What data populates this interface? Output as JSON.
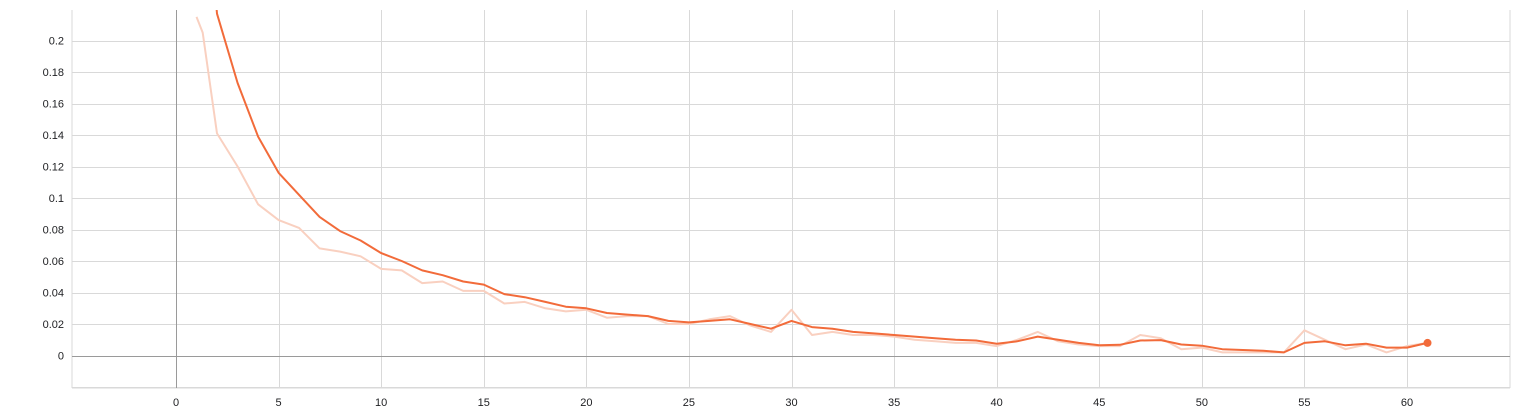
{
  "chart_data": {
    "type": "line",
    "title": "",
    "xlabel": "",
    "ylabel": "",
    "xlim": [
      -5,
      65
    ],
    "ylim": [
      -0.02,
      0.22
    ],
    "x_ticks": [
      0,
      5,
      10,
      15,
      20,
      25,
      30,
      35,
      40,
      45,
      50,
      55,
      60
    ],
    "x_tick_labels": [
      "0",
      "5",
      "10",
      "15",
      "20",
      "25",
      "30",
      "35",
      "40",
      "45",
      "50",
      "55",
      "60"
    ],
    "y_ticks": [
      0,
      0.02,
      0.04,
      0.06,
      0.08,
      0.1,
      0.12,
      0.14,
      0.16,
      0.18,
      0.2
    ],
    "y_tick_labels": [
      "0",
      "0.02",
      "0.04",
      "0.06",
      "0.08",
      "0.1",
      "0.12",
      "0.14",
      "0.16",
      "0.18",
      "0.2"
    ],
    "grid": true,
    "colors": {
      "raw": "#f9d0c0",
      "smoothed": "#f26b3a",
      "grid": "#d9d9d9",
      "zero_axis": "#9a9a9a"
    },
    "series": [
      {
        "x": [
          1,
          1.3,
          2,
          3,
          4,
          5,
          6,
          7,
          8,
          9,
          10,
          11,
          12,
          13,
          14,
          15,
          16,
          17,
          18,
          19,
          20,
          21,
          22,
          23,
          24,
          25,
          26,
          27,
          28,
          29,
          30,
          31,
          32,
          33,
          34,
          35,
          36,
          37,
          38,
          39,
          40,
          41,
          42,
          43,
          44,
          45,
          46,
          47,
          48,
          49,
          50,
          51,
          52,
          53,
          54,
          55,
          56,
          57,
          58,
          59,
          60,
          61
        ],
        "values": [
          0.215,
          0.205,
          0.141,
          0.12,
          0.096,
          0.086,
          0.081,
          0.068,
          0.066,
          0.063,
          0.055,
          0.054,
          0.046,
          0.047,
          0.041,
          0.041,
          0.033,
          0.034,
          0.03,
          0.028,
          0.029,
          0.024,
          0.025,
          0.025,
          0.02,
          0.02,
          0.023,
          0.025,
          0.019,
          0.015,
          0.029,
          0.013,
          0.015,
          0.013,
          0.013,
          0.012,
          0.01,
          0.009,
          0.008,
          0.008,
          0.006,
          0.01,
          0.015,
          0.009,
          0.007,
          0.006,
          0.006,
          0.013,
          0.011,
          0.004,
          0.005,
          0.002,
          0.002,
          0.002,
          0.002,
          0.016,
          0.01,
          0.004,
          0.007,
          0.002,
          0.006,
          0.008
        ]
      },
      {
        "x": [
          1.98,
          2,
          3,
          4,
          5,
          6,
          7,
          8,
          9,
          10,
          11,
          12,
          13,
          14,
          15,
          16,
          17,
          18,
          19,
          20,
          21,
          22,
          23,
          24,
          25,
          26,
          27,
          28,
          29,
          30,
          31,
          32,
          33,
          34,
          35,
          36,
          37,
          38,
          39,
          40,
          41,
          42,
          43,
          44,
          45,
          46,
          47,
          48,
          49,
          50,
          51,
          52,
          53,
          54,
          55,
          56,
          57,
          58,
          59,
          60,
          61
        ],
        "values": [
          0.22,
          0.217,
          0.173,
          0.139,
          0.116,
          0.102,
          0.088,
          0.079,
          0.073,
          0.065,
          0.06,
          0.054,
          0.051,
          0.047,
          0.045,
          0.039,
          0.037,
          0.034,
          0.031,
          0.03,
          0.027,
          0.026,
          0.025,
          0.022,
          0.021,
          0.022,
          0.023,
          0.02,
          0.017,
          0.022,
          0.018,
          0.017,
          0.015,
          0.014,
          0.013,
          0.012,
          0.011,
          0.01,
          0.0095,
          0.0075,
          0.009,
          0.012,
          0.01,
          0.008,
          0.0065,
          0.0068,
          0.0095,
          0.0098,
          0.007,
          0.0062,
          0.004,
          0.0035,
          0.003,
          0.002,
          0.008,
          0.009,
          0.0065,
          0.0075,
          0.005,
          0.005,
          0.008
        ]
      }
    ]
  }
}
